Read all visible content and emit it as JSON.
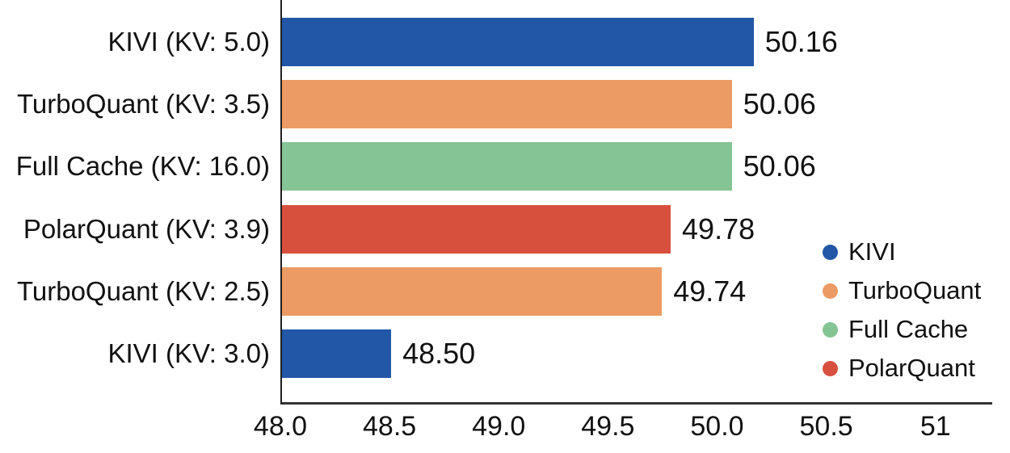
{
  "chart_data": {
    "type": "bar",
    "orientation": "horizontal",
    "title": "",
    "xlabel": "",
    "ylabel": "",
    "categories": [
      "KIVI (KV: 5.0)",
      "TurboQuant (KV: 3.5)",
      "Full Cache (KV: 16.0)",
      "PolarQuant (KV: 3.9)",
      "TurboQuant (KV: 2.5)",
      "KIVI (KV: 3.0)"
    ],
    "values": [
      50.16,
      50.06,
      50.06,
      49.78,
      49.74,
      48.5
    ],
    "value_labels": [
      "50.16",
      "50.06",
      "50.06",
      "49.78",
      "49.74",
      "48.50"
    ],
    "bar_series": [
      "KIVI",
      "TurboQuant",
      "Full Cache",
      "PolarQuant",
      "TurboQuant",
      "KIVI"
    ],
    "bar_colors": [
      "#2157A6",
      "#EB9B63",
      "#85C494",
      "#D7503E",
      "#EB9B63",
      "#2157A6"
    ],
    "xlim": [
      48.0,
      51.26
    ],
    "xticks": [
      48.0,
      48.5,
      49.0,
      49.5,
      50.0,
      50.5,
      51.0
    ],
    "xtick_labels": [
      "48.0",
      "48.5",
      "49.0",
      "49.5",
      "50.0",
      "50.5",
      "51"
    ],
    "grid": false,
    "legend": {
      "position": "right-middle",
      "entries": [
        {
          "label": "KIVI",
          "color": "#2157A6"
        },
        {
          "label": "TurboQuant",
          "color": "#EB9B63"
        },
        {
          "label": "Full Cache",
          "color": "#85C494"
        },
        {
          "label": "PolarQuant",
          "color": "#D7503E"
        }
      ]
    }
  },
  "colors": {
    "background": "#ffffff",
    "axis_spine": "#2b2b2b",
    "text": "#111111"
  }
}
